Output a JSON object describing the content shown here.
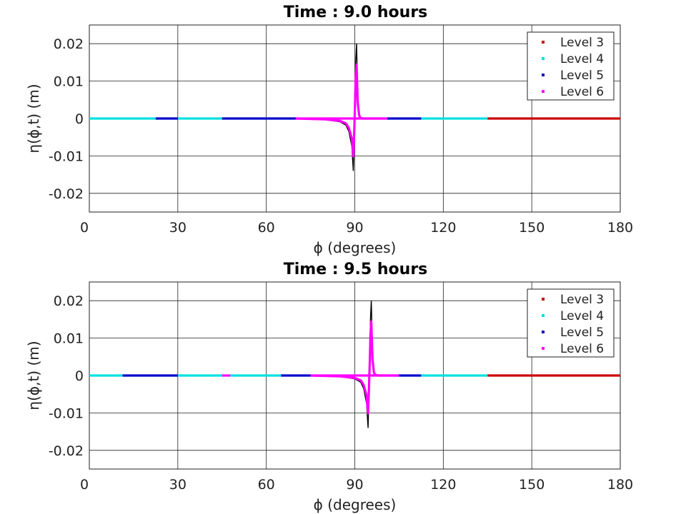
{
  "chart_data": [
    {
      "type": "line",
      "title": "Time : 9.0 hours",
      "xlabel": "ϕ (degrees)",
      "ylabel": "η(ϕ,t) (m)",
      "xlim": [
        0,
        180
      ],
      "ylim": [
        -0.025,
        0.025
      ],
      "xticks": [
        0,
        30,
        60,
        90,
        120,
        150,
        180
      ],
      "xtick_labels": [
        "0",
        "30",
        "60",
        "90",
        "120",
        "150",
        "180"
      ],
      "yticks": [
        -0.02,
        -0.01,
        0,
        0.01,
        0.02
      ],
      "ytick_labels": [
        "-0.02",
        "-0.01",
        "0",
        "0.01",
        "0.02"
      ],
      "grid": true,
      "legend_position": "top-right",
      "series": [
        {
          "name": "Level 3",
          "color": "#cc0000",
          "marker": "dot",
          "segments": [
            [
              135,
              180
            ]
          ]
        },
        {
          "name": "Level 4",
          "color": "#00e0e0",
          "marker": "dot",
          "segments": [
            [
              0,
              22.5
            ],
            [
              30,
              45
            ],
            [
              112.5,
              135
            ]
          ]
        },
        {
          "name": "Level 5",
          "color": "#0000cc",
          "marker": "dot",
          "segments": [
            [
              22.5,
              30
            ],
            [
              45,
              70
            ],
            [
              101,
              112.5
            ]
          ]
        },
        {
          "name": "Level 6",
          "color": "#ff00ff",
          "marker": "dot",
          "segments": [
            [
              70,
              101
            ]
          ]
        }
      ],
      "reference": {
        "color": "#000000"
      },
      "wave": {
        "center": 90.5,
        "x": [
          70,
          80,
          85,
          87,
          88,
          89,
          89.5,
          89.8,
          90.1,
          90.3,
          90.6,
          91,
          91.5,
          92,
          93,
          100,
          101
        ],
        "y": [
          0,
          -0.0003,
          -0.0009,
          -0.0018,
          -0.0035,
          -0.0075,
          -0.014,
          -0.005,
          0.006,
          0.015,
          0.02,
          0.006,
          0.001,
          0.0002,
          0,
          0,
          0
        ]
      }
    },
    {
      "type": "line",
      "title": "Time : 9.5 hours",
      "xlabel": "ϕ (degrees)",
      "ylabel": "η(ϕ,t) (m)",
      "xlim": [
        0,
        180
      ],
      "ylim": [
        -0.025,
        0.025
      ],
      "xticks": [
        0,
        30,
        60,
        90,
        120,
        150,
        180
      ],
      "xtick_labels": [
        "0",
        "30",
        "60",
        "90",
        "120",
        "150",
        "180"
      ],
      "yticks": [
        -0.02,
        -0.01,
        0,
        0.01,
        0.02
      ],
      "ytick_labels": [
        "-0.02",
        "-0.01",
        "0",
        "0.01",
        "0.02"
      ],
      "grid": true,
      "legend_position": "top-right",
      "series": [
        {
          "name": "Level 3",
          "color": "#cc0000",
          "marker": "dot",
          "segments": [
            [
              135,
              180
            ]
          ]
        },
        {
          "name": "Level 4",
          "color": "#00e0e0",
          "marker": "dot",
          "segments": [
            [
              0,
              11.25
            ],
            [
              30,
              45
            ],
            [
              47.8,
              65
            ],
            [
              112.5,
              135
            ]
          ]
        },
        {
          "name": "Level 5",
          "color": "#0000cc",
          "marker": "dot",
          "segments": [
            [
              11.25,
              30
            ],
            [
              65,
              75
            ],
            [
              104,
              112.5
            ]
          ]
        },
        {
          "name": "Level 6",
          "color": "#ff00ff",
          "marker": "dot",
          "segments": [
            [
              45,
              47.8
            ],
            [
              75,
              104
            ]
          ]
        }
      ],
      "reference": {
        "color": "#000000"
      },
      "wave": {
        "center": 95,
        "x": [
          75,
          85,
          90,
          92,
          93,
          94,
          94.5,
          94.8,
          95.1,
          95.3,
          95.6,
          96,
          96.5,
          97,
          98,
          104,
          105
        ],
        "y": [
          0,
          -0.0003,
          -0.0009,
          -0.0018,
          -0.0035,
          -0.0075,
          -0.014,
          -0.005,
          0.006,
          0.015,
          0.02,
          0.006,
          0.001,
          0.0002,
          0,
          0,
          0
        ]
      }
    }
  ]
}
